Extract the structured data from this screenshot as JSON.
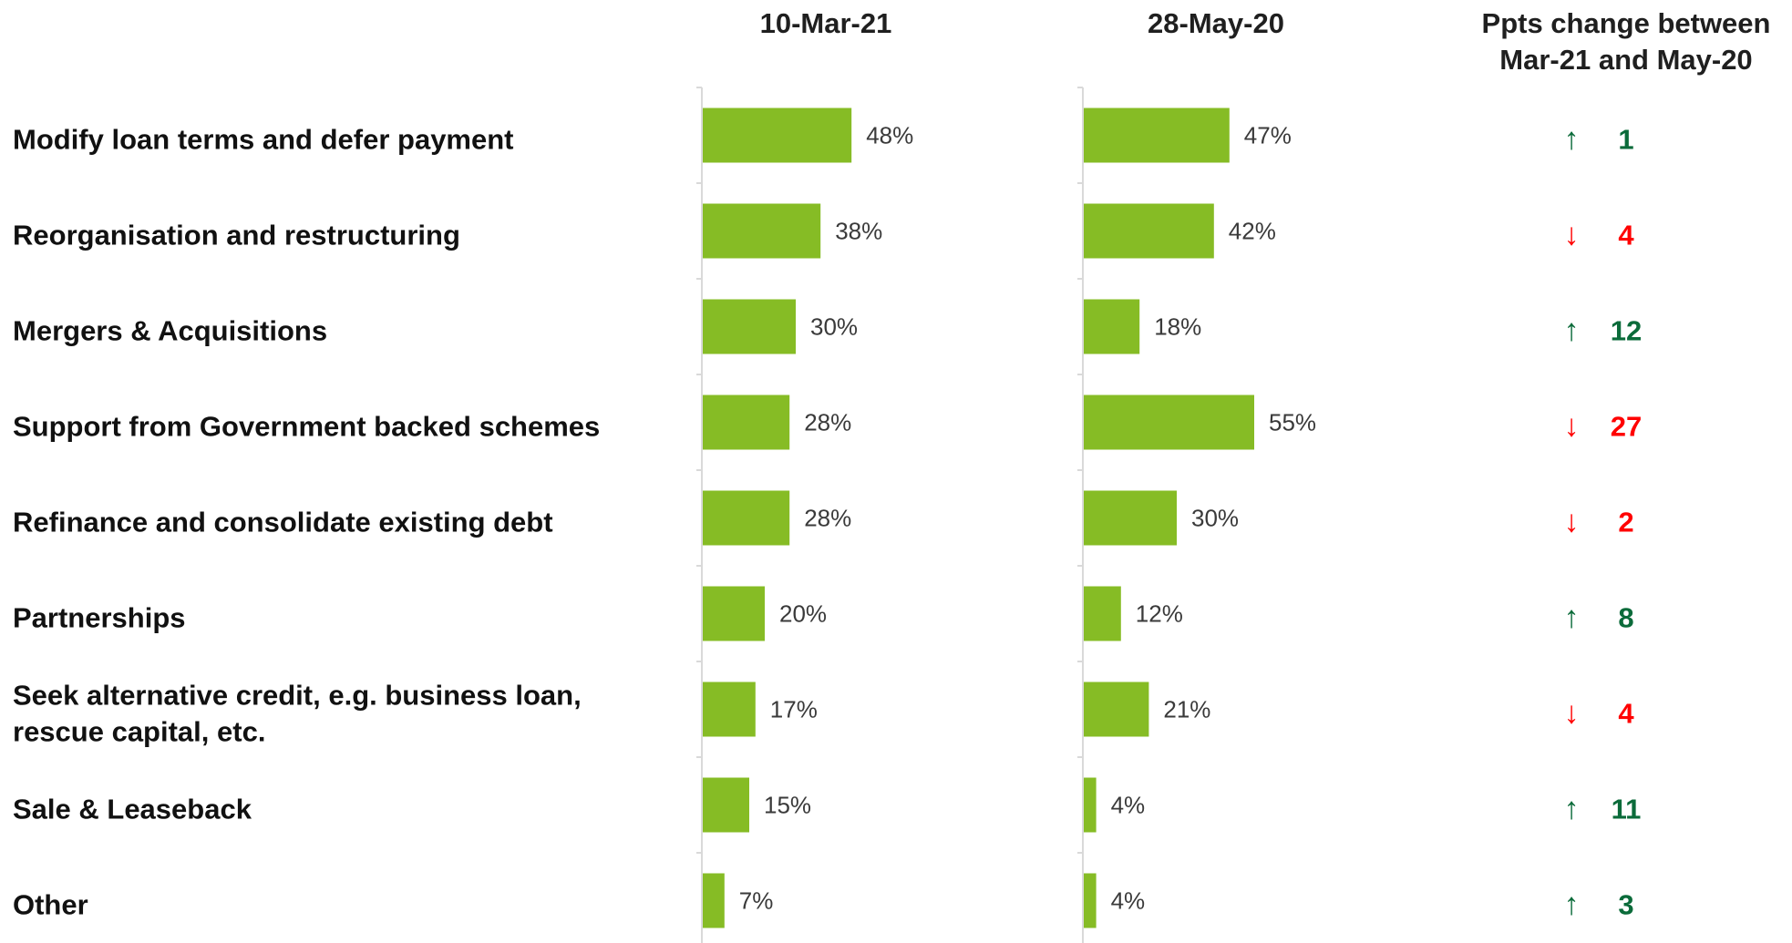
{
  "chart_data": {
    "type": "bar",
    "orientation": "horizontal",
    "categories": [
      [
        "Modify loan terms and defer payment"
      ],
      [
        "Reorganisation and restructuring"
      ],
      [
        "Mergers & Acquisitions"
      ],
      [
        "Support from Government backed schemes"
      ],
      [
        "Refinance and consolidate existing debt"
      ],
      [
        "Partnerships"
      ],
      [
        "Seek alternative credit, e.g. business loan,",
        "rescue capital, etc."
      ],
      [
        "Sale & Leaseback"
      ],
      [
        "Other"
      ]
    ],
    "series": [
      {
        "name": "10-Mar-21",
        "values": [
          48,
          38,
          30,
          28,
          28,
          20,
          17,
          15,
          7
        ],
        "labels": [
          "48%",
          "38%",
          "30%",
          "28%",
          "28%",
          "20%",
          "17%",
          "15%",
          "7%"
        ]
      },
      {
        "name": "28-May-20",
        "values": [
          47,
          42,
          18,
          55,
          30,
          12,
          21,
          4,
          4
        ],
        "labels": [
          "47%",
          "42%",
          "18%",
          "55%",
          "30%",
          "12%",
          "21%",
          "4%",
          "4%"
        ]
      }
    ],
    "change": {
      "title_lines": [
        "Ppts change between",
        "Mar-21 and May-20"
      ],
      "values": [
        "1",
        "4",
        "12",
        "27",
        "2",
        "8",
        "4",
        "11",
        "3"
      ],
      "directions": [
        "up",
        "down",
        "up",
        "down",
        "down",
        "up",
        "down",
        "up",
        "up"
      ]
    },
    "xlim": [
      0,
      100
    ],
    "grid": false,
    "legend": "none"
  },
  "colors": {
    "bar": "#86bc25",
    "up": "#0b6b3a",
    "down": "#ff0000",
    "axis": "#d9d9d9"
  },
  "icons": {
    "up": "arrow-up-icon",
    "down": "arrow-down-icon"
  }
}
